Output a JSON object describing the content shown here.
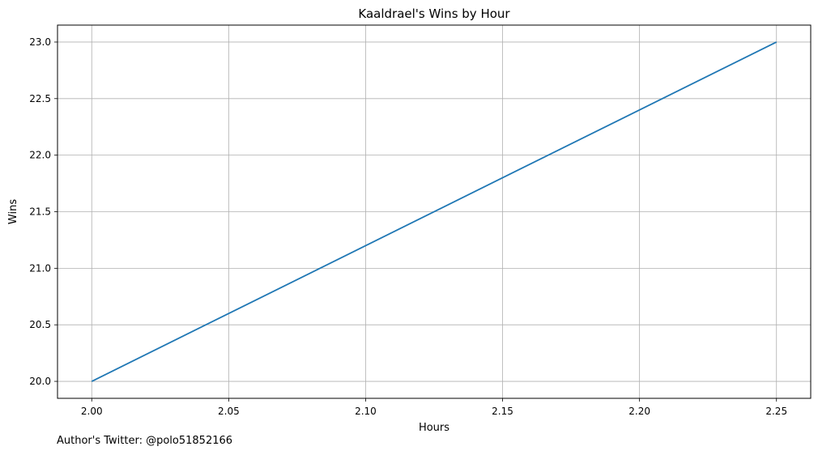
{
  "chart_data": {
    "type": "line",
    "title": "Kaaldrael's Wins by Hour",
    "xlabel": "Hours",
    "ylabel": "Wins",
    "xlim": [
      1.9875,
      2.2625
    ],
    "ylim": [
      19.85,
      23.15
    ],
    "x_ticks": [
      "2.00",
      "2.05",
      "2.10",
      "2.15",
      "2.20",
      "2.25"
    ],
    "y_ticks": [
      "20.0",
      "20.5",
      "21.0",
      "21.5",
      "22.0",
      "22.5",
      "23.0"
    ],
    "grid": true,
    "series": [
      {
        "x": [
          2.0,
          2.25
        ],
        "y": [
          20,
          23
        ],
        "color": "#1f77b4"
      }
    ]
  },
  "footer": {
    "note": "Author's Twitter: @polo51852166"
  }
}
